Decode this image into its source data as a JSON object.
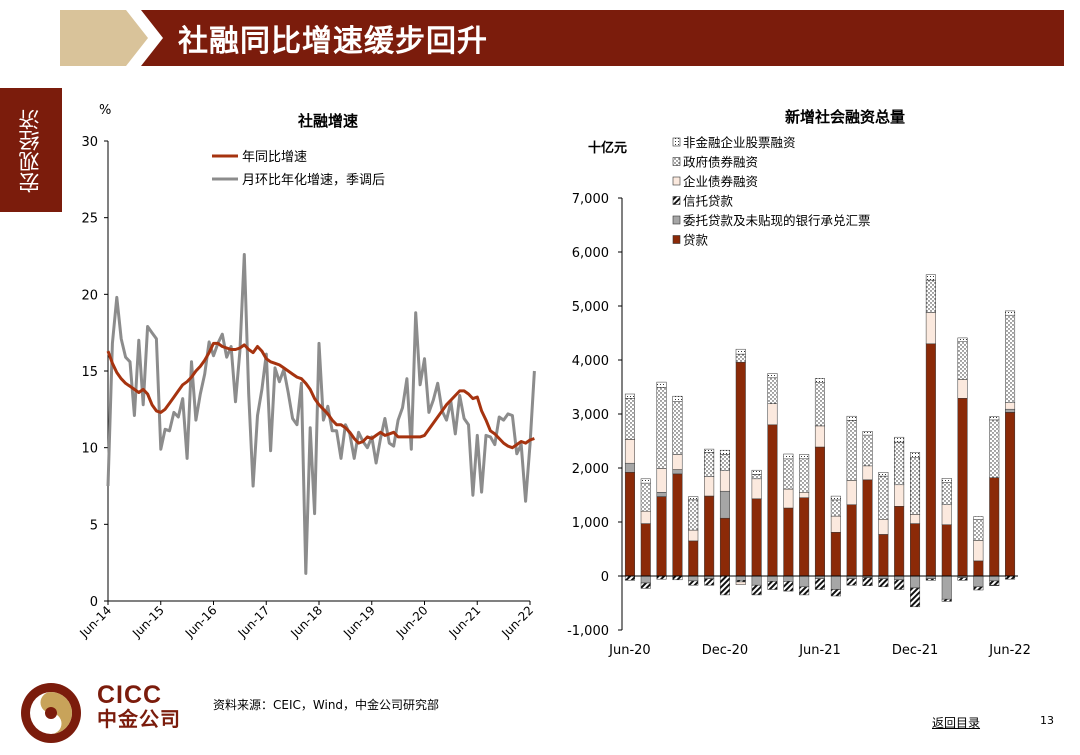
{
  "header": {
    "title": "社融同比增速缓步回升",
    "section": "宏观经济"
  },
  "colors": {
    "brand": "#7b1c0c",
    "gold": "#d9c39a",
    "yoy_line": "#a6330f",
    "mom_line": "#8c8c8c"
  },
  "footer": {
    "source": "资料来源：CEIC，Wind，中金公司研究部",
    "back_link": "返回目录",
    "page_number": "13"
  },
  "logo": {
    "word": "CICC",
    "chinese": "中金公司"
  },
  "chart_data": [
    {
      "type": "line",
      "title": "社融增速",
      "ylabel": "%",
      "ylim": [
        0,
        30
      ],
      "yticks": [
        "0",
        "5",
        "10",
        "15",
        "20",
        "25",
        "30"
      ],
      "xticks": [
        "Jun-14",
        "Jun-15",
        "Jun-16",
        "Jun-17",
        "Jun-18",
        "Jun-19",
        "Jun-20",
        "Jun-21",
        "Jun-22"
      ],
      "x_range": [
        0,
        96
      ],
      "series": [
        {
          "name": "年同比增速",
          "color": "#a6330f",
          "values": [
            16.3,
            15.5,
            14.9,
            14.5,
            14.2,
            14.0,
            13.8,
            13.6,
            13.8,
            13.5,
            12.8,
            12.4,
            12.3,
            12.5,
            12.9,
            13.3,
            13.7,
            14.1,
            14.3,
            14.6,
            15.0,
            15.3,
            15.7,
            16.2,
            16.8,
            16.8,
            16.6,
            16.5,
            16.4,
            16.4,
            16.5,
            16.7,
            16.4,
            16.2,
            16.6,
            16.3,
            15.8,
            15.6,
            15.5,
            15.4,
            15.2,
            15.0,
            14.8,
            14.6,
            14.5,
            14.2,
            13.8,
            13.2,
            12.8,
            12.5,
            12.2,
            11.8,
            11.5,
            11.5,
            11.3,
            11.0,
            10.6,
            10.3,
            10.4,
            10.7,
            10.6,
            10.8,
            11.0,
            10.8,
            10.9,
            11.0,
            10.7,
            10.7,
            10.7,
            10.7,
            10.7,
            10.7,
            10.8,
            11.2,
            11.6,
            12.0,
            12.4,
            12.8,
            13.1,
            13.4,
            13.7,
            13.7,
            13.5,
            13.2,
            13.3,
            12.4,
            11.8,
            11.1,
            10.9,
            10.6,
            10.3,
            10.1,
            10.0,
            10.2,
            10.4,
            10.3,
            10.5,
            10.6
          ]
        },
        {
          "name": "月环比年化增速，季调后",
          "color": "#8c8c8c",
          "values": [
            7.5,
            16.8,
            19.8,
            17.1,
            15.9,
            15.6,
            12.1,
            17.0,
            12.8,
            17.9,
            17.5,
            17.1,
            9.9,
            11.2,
            11.1,
            12.3,
            12.0,
            13.2,
            9.3,
            15.6,
            11.8,
            13.5,
            14.8,
            16.9,
            16.0,
            16.8,
            17.4,
            15.9,
            16.6,
            13.0,
            16.3,
            22.6,
            13.5,
            7.5,
            12.1,
            13.8,
            16.1,
            9.8,
            15.2,
            14.3,
            15.1,
            13.6,
            11.9,
            11.5,
            14.2,
            1.8,
            11.3,
            5.7,
            16.8,
            11.8,
            12.7,
            11.1,
            11.1,
            9.3,
            11.5,
            10.9,
            9.3,
            11.0,
            10.4,
            10.0,
            10.7,
            9.0,
            10.6,
            11.9,
            10.3,
            10.1,
            11.8,
            12.6,
            14.5,
            9.9,
            18.8,
            14.1,
            15.8,
            12.3,
            13.1,
            14.2,
            12.4,
            11.8,
            13.0,
            10.9,
            13.4,
            11.9,
            11.5,
            6.9,
            10.8,
            7.1,
            10.8,
            10.7,
            10.2,
            12.0,
            11.8,
            12.2,
            12.1,
            9.6,
            10.2,
            6.5,
            10.2,
            15.0
          ]
        }
      ]
    },
    {
      "type": "bar",
      "stacked": true,
      "title": "新增社会融资总量",
      "ylabel": "十亿元",
      "ylim": [
        -1000,
        7000
      ],
      "yticks": [
        "-1,000",
        "0",
        "1,000",
        "2,000",
        "3,000",
        "4,000",
        "5,000",
        "6,000",
        "7,000"
      ],
      "xticks": [
        "Jun-20",
        "Dec-20",
        "Jun-21",
        "Dec-21",
        "Jun-22"
      ],
      "categories": [
        "Jun-20",
        "Jul-20",
        "Aug-20",
        "Sep-20",
        "Oct-20",
        "Nov-20",
        "Dec-20",
        "Jan-21",
        "Feb-21",
        "Mar-21",
        "Apr-21",
        "May-21",
        "Jun-21",
        "Jul-21",
        "Aug-21",
        "Sep-21",
        "Oct-21",
        "Nov-21",
        "Dec-21",
        "Jan-22",
        "Feb-22",
        "Mar-22",
        "Apr-22",
        "May-22",
        "Jun-22"
      ],
      "series": [
        {
          "name": "非金融企业股票融资",
          "pattern": "dots-small",
          "values": [
            80,
            80,
            100,
            100,
            60,
            60,
            80,
            90,
            80,
            80,
            90,
            80,
            80,
            70,
            80,
            70,
            70,
            90,
            100,
            100,
            80,
            70,
            50,
            60,
            80
          ]
        },
        {
          "name": "政府债券融资",
          "pattern": "dots",
          "values": [
            760,
            520,
            1500,
            980,
            560,
            450,
            300,
            150,
            80,
            480,
            560,
            620,
            800,
            300,
            1110,
            570,
            800,
            790,
            1050,
            600,
            410,
            700,
            390,
            1070,
            1620
          ]
        },
        {
          "name": "企业债券融资",
          "pattern": "light",
          "values": [
            440,
            230,
            440,
            280,
            200,
            360,
            380,
            -50,
            370,
            390,
            350,
            100,
            390,
            300,
            450,
            260,
            280,
            400,
            170,
            580,
            370,
            350,
            380,
            -10,
            120
          ]
        },
        {
          "name": "信托贷款",
          "pattern": "hatch",
          "values": [
            -80,
            -100,
            -60,
            -70,
            -80,
            -120,
            -350,
            -30,
            -180,
            -150,
            -180,
            -150,
            -200,
            -120,
            -120,
            -150,
            -150,
            -180,
            -350,
            -30,
            -40,
            -50,
            -60,
            -80,
            -60
          ]
        },
        {
          "name": "委托贷款及未贴现的银行承兑汇票",
          "pattern": "gray",
          "values": [
            170,
            -130,
            80,
            80,
            -90,
            -50,
            500,
            -80,
            -170,
            -100,
            -100,
            -200,
            -50,
            -250,
            -50,
            -30,
            -50,
            -70,
            -220,
            -50,
            -430,
            -30,
            -200,
            -90,
            60
          ]
        },
        {
          "name": "贷款",
          "pattern": "brown",
          "values": [
            1920,
            970,
            1470,
            1890,
            650,
            1480,
            1070,
            3960,
            1430,
            2800,
            1260,
            1450,
            2390,
            810,
            1320,
            1780,
            770,
            1290,
            970,
            4300,
            950,
            3290,
            280,
            1820,
            3030
          ]
        }
      ]
    }
  ]
}
